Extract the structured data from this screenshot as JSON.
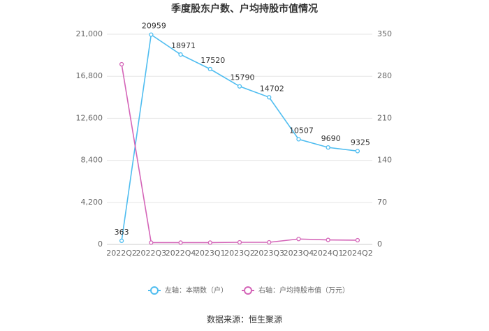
{
  "chart_data": {
    "type": "line",
    "title": "季度股东户数、户均持股市值情况",
    "categories": [
      "2022Q2",
      "2022Q3",
      "2022Q4",
      "2023Q1",
      "2023Q2",
      "2023Q3",
      "2023Q4",
      "2024Q1",
      "2024Q2"
    ],
    "series": [
      {
        "name": "左轴：本期数（户）",
        "color": "#4fbdf0",
        "values": [
          363,
          20959,
          18971,
          17520,
          15790,
          14702,
          10507,
          9690,
          9325
        ]
      },
      {
        "name": "右轴：户均持股市值（万元）",
        "color": "#d465b8",
        "axis": "y2",
        "values": [
          300,
          3,
          3,
          3,
          3.5,
          3.5,
          9,
          7.5,
          7
        ]
      }
    ],
    "ylim": [
      0,
      21000
    ],
    "yticks": [
      0,
      {
        "value": 4200,
        "label": "4,200"
      },
      {
        "value": 8400,
        "label": "8,400"
      },
      {
        "value": 12600,
        "label": "12,600"
      },
      {
        "value": 16800,
        "label": "16,800"
      },
      {
        "value": 21000,
        "label": "21,000"
      }
    ],
    "y2lim": [
      0,
      350
    ],
    "y2ticks": [
      0,
      70,
      140,
      210,
      280,
      350
    ],
    "grid": true,
    "legend": "bottom",
    "source": "数据来源：恒生聚源"
  }
}
